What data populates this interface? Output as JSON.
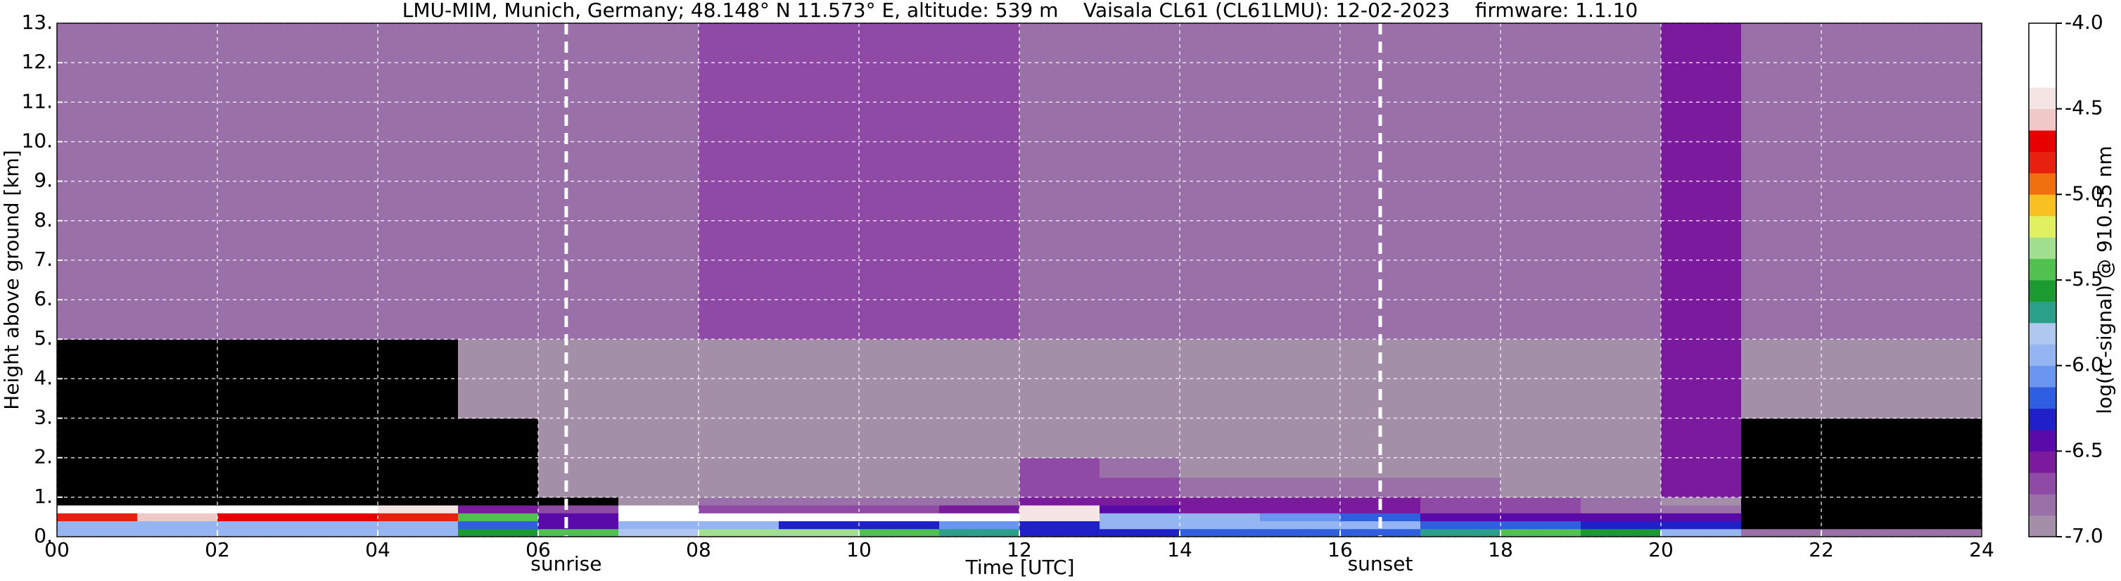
{
  "chart_data": {
    "type": "heatmap",
    "title": "LMU-MIM, Munich, Germany; 48.148° N 11.573° E, altitude: 539 m    Vaisala CL61 (CL61LMU): 12-02-2023    firmware: 1.1.10",
    "x_label": "Time [UTC]",
    "y_label": "Height above ground [km]",
    "colorbar_label": "log(rc-signal) @ 910.55 nm",
    "xlim": [
      0,
      24
    ],
    "ylim": [
      0,
      13
    ],
    "zlim": [
      -7,
      -4
    ],
    "xticks": [
      {
        "value": 0,
        "label": "00"
      },
      {
        "value": 2,
        "label": "02"
      },
      {
        "value": 4,
        "label": "04"
      },
      {
        "value": 6,
        "label": "06"
      },
      {
        "value": 8,
        "label": "08"
      },
      10,
      12,
      14,
      16,
      18,
      20,
      22,
      24
    ],
    "yticks": [
      {
        "value": 0,
        "label": "0."
      },
      {
        "value": 1,
        "label": "1."
      },
      {
        "value": 2,
        "label": "2."
      },
      {
        "value": 3,
        "label": "3."
      },
      {
        "value": 4,
        "label": "4."
      },
      {
        "value": 5,
        "label": "5."
      },
      {
        "value": 6,
        "label": "6."
      },
      {
        "value": 7,
        "label": "7."
      },
      {
        "value": 8,
        "label": "8."
      },
      {
        "value": 9,
        "label": "9."
      },
      {
        "value": 10,
        "label": "10."
      },
      {
        "value": 11,
        "label": "11."
      },
      {
        "value": 12,
        "label": "12."
      },
      {
        "value": 13,
        "label": "13."
      }
    ],
    "zticks": [
      {
        "value": -7,
        "label": "-7.0"
      },
      -6.5,
      {
        "value": -6,
        "label": "-6.0"
      },
      -5.5,
      {
        "value": -5,
        "label": "-5.0"
      },
      -4.5,
      {
        "value": -4,
        "label": "-4.0"
      }
    ],
    "grid": true,
    "background": "#000000",
    "under_color": "#000000",
    "colormap": [
      "#a48fa8",
      "#9a70a8",
      "#8e4aa4",
      "#7a1a9c",
      "#5a0aa8",
      "#2020c8",
      "#2f5fe0",
      "#6a95f0",
      "#95b5f2",
      "#b0c8f0",
      "#2aa08a",
      "#1a9a30",
      "#50c050",
      "#a0e090",
      "#e0f060",
      "#f8c020",
      "#f07010",
      "#e82010",
      "#e80000",
      "#f0c8c8",
      "#f4e4e4",
      "#ffffff",
      "#ffffff",
      "#ffffff"
    ],
    "x_edges": [
      0,
      1,
      2,
      3,
      4,
      5,
      6,
      7,
      8,
      9,
      10,
      11,
      12,
      13,
      14,
      15,
      16,
      17,
      18,
      19,
      20,
      21,
      22,
      23,
      24
    ],
    "y_edges": [
      0,
      0.2,
      0.4,
      0.6,
      0.8,
      1,
      1.5,
      2,
      3,
      5,
      8,
      13
    ],
    "z": [
      [
        -5.9,
        -5.9,
        -5.9,
        -5.9,
        -5.9,
        -5.6,
        -5.5,
        -5.8,
        -5.3,
        -5.3,
        -5.5,
        -5.7,
        -6.3,
        -6.3,
        -6.2,
        -6.2,
        -6.2,
        -5.7,
        -5.5,
        -5.6,
        -5.9,
        -6.8,
        -6.8,
        -6.8
      ],
      [
        -6.0,
        -6.0,
        -6.0,
        -6.0,
        -6.0,
        -6.2,
        -6.4,
        -6.0,
        -5.9,
        -6.3,
        -6.3,
        -6.1,
        -6.3,
        -6.0,
        -5.9,
        -5.9,
        -6.0,
        -6.2,
        -6.2,
        -6.3,
        -6.3,
        -7.2,
        -7.2,
        -7.2
      ],
      [
        -4.8,
        -4.6,
        -4.7,
        -4.7,
        -4.8,
        -5.5,
        -6.5,
        -4.3,
        -4.2,
        -4.2,
        -4.2,
        -4.3,
        -4.5,
        -6.0,
        -5.9,
        -6.1,
        -6.2,
        -6.4,
        -6.4,
        -6.5,
        -6.5,
        -7.2,
        -7.2,
        -7.2
      ],
      [
        -4.2,
        -4.2,
        -4.3,
        -4.3,
        -4.4,
        -6.6,
        -6.7,
        -4.3,
        -6.7,
        -6.7,
        -6.7,
        -6.6,
        -4.4,
        -6.5,
        -6.6,
        -6.6,
        -6.6,
        -6.7,
        -6.7,
        -6.8,
        -6.8,
        -7.2,
        -7.2,
        -7.2
      ],
      [
        -7.2,
        -7.2,
        -7.2,
        -7.2,
        -7.2,
        -7.2,
        -7.2,
        -6.9,
        -6.8,
        -6.8,
        -6.8,
        -6.8,
        -6.6,
        -6.6,
        -6.6,
        -6.6,
        -6.6,
        -6.7,
        -6.7,
        -6.8,
        -6.9,
        -7.2,
        -7.2,
        -7.2
      ],
      [
        -7.2,
        -7.2,
        -7.2,
        -7.2,
        -7.2,
        -7.2,
        -6.9,
        -6.9,
        -6.9,
        -6.9,
        -6.9,
        -6.9,
        -6.7,
        -6.7,
        -6.8,
        -6.8,
        -6.8,
        -6.8,
        -6.9,
        -6.9,
        -6.6,
        -7.2,
        -7.2,
        -7.2
      ],
      [
        -7.2,
        -7.2,
        -7.2,
        -7.2,
        -7.2,
        -7.2,
        -6.9,
        -6.9,
        -6.9,
        -6.9,
        -6.9,
        -6.9,
        -6.7,
        -6.8,
        -6.9,
        -6.9,
        -6.9,
        -6.9,
        -6.9,
        -6.9,
        -6.6,
        -7.2,
        -7.2,
        -7.2
      ],
      [
        -7.2,
        -7.2,
        -7.2,
        -7.2,
        -7.2,
        -7.2,
        -6.9,
        -6.9,
        -6.9,
        -6.9,
        -6.9,
        -6.9,
        -6.9,
        -6.9,
        -6.9,
        -6.9,
        -6.9,
        -6.9,
        -6.9,
        -6.9,
        -6.6,
        -7.2,
        -7.2,
        -7.2
      ],
      [
        -7.1,
        -7.1,
        -7.1,
        -7.1,
        -7.1,
        -6.9,
        -6.9,
        -6.9,
        -6.9,
        -6.9,
        -6.9,
        -6.9,
        -6.9,
        -6.9,
        -6.9,
        -6.9,
        -6.9,
        -6.9,
        -6.9,
        -6.9,
        -6.6,
        -6.95,
        -6.95,
        -6.95
      ],
      [
        -6.85,
        -6.85,
        -6.85,
        -6.85,
        -6.85,
        -6.85,
        -6.85,
        -6.85,
        -6.75,
        -6.75,
        -6.75,
        -6.75,
        -6.85,
        -6.85,
        -6.85,
        -6.85,
        -6.85,
        -6.85,
        -6.85,
        -6.85,
        -6.6,
        -6.85,
        -6.85,
        -6.85
      ],
      [
        -6.8,
        -6.8,
        -6.8,
        -6.8,
        -6.8,
        -6.8,
        -6.8,
        -6.8,
        -6.7,
        -6.7,
        -6.7,
        -6.7,
        -6.8,
        -6.8,
        -6.8,
        -6.8,
        -6.8,
        -6.8,
        -6.8,
        -6.8,
        -6.6,
        -6.8,
        -6.8,
        -6.8
      ]
    ],
    "annotations": [
      {
        "x": 6.35,
        "label": "sunrise"
      },
      {
        "x": 16.5,
        "label": "sunset"
      }
    ]
  }
}
